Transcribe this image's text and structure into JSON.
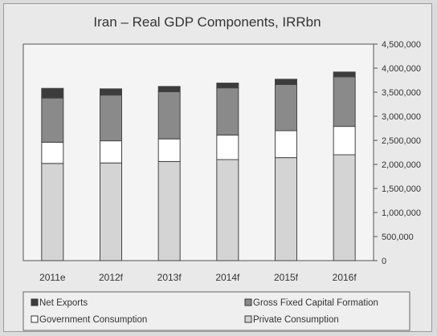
{
  "chart_data": {
    "type": "stacked-bar",
    "title": "Iran – Real GDP Components, IRRbn",
    "categories": [
      "2011e",
      "2012f",
      "2013f",
      "2014f",
      "2015f",
      "2016f"
    ],
    "series": [
      {
        "name": "Private Consumption",
        "color": "#d4d4d4",
        "values": [
          2020000,
          2030000,
          2060000,
          2100000,
          2140000,
          2200000
        ]
      },
      {
        "name": "Government Consumption",
        "color": "#ffffff",
        "values": [
          440000,
          460000,
          470000,
          510000,
          560000,
          590000
        ]
      },
      {
        "name": "Gross Fixed Capital Formation",
        "color": "#8a8a8a",
        "values": [
          920000,
          950000,
          980000,
          980000,
          960000,
          1030000
        ]
      },
      {
        "name": "Net Exports",
        "color": "#3c3c3c",
        "values": [
          200000,
          130000,
          110000,
          100000,
          110000,
          100000
        ]
      }
    ],
    "ylim": [
      0,
      4500000
    ],
    "yticks": [
      "0",
      "500,000",
      "1,000,000",
      "1,500,000",
      "2,000,000",
      "2,500,000",
      "3,000,000",
      "3,500,000",
      "4,000,000",
      "4,500,000"
    ],
    "legend_position": "bottom",
    "legend_order": [
      "Net Exports",
      "Gross Fixed Capital Formation",
      "Government Consumption",
      "Private Consumption"
    ]
  }
}
